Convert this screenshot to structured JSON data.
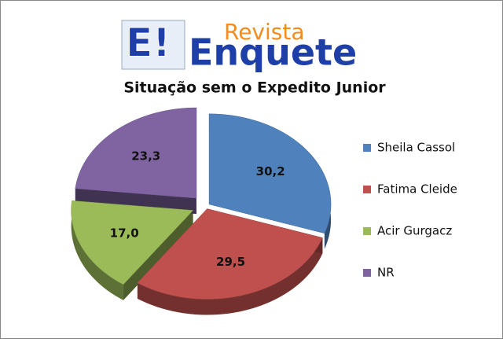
{
  "logo": {
    "mark": "E!",
    "top": "Revista",
    "main": "Enquete"
  },
  "chart_data": {
    "type": "pie",
    "title": "Situação sem o Expedito Junior",
    "categories": [
      "Sheila Cassol",
      "Fatima Cleide",
      "Acir Gurgacz",
      "NR"
    ],
    "values": [
      30.2,
      29.5,
      17.0,
      23.3
    ],
    "value_labels": [
      "30,2",
      "29,5",
      "17,0",
      "23,3"
    ],
    "colors": [
      "#4f81bd",
      "#c0504d",
      "#9bbb59",
      "#8064a2"
    ],
    "exploded": [
      false,
      false,
      true,
      true
    ],
    "legend": "right"
  }
}
